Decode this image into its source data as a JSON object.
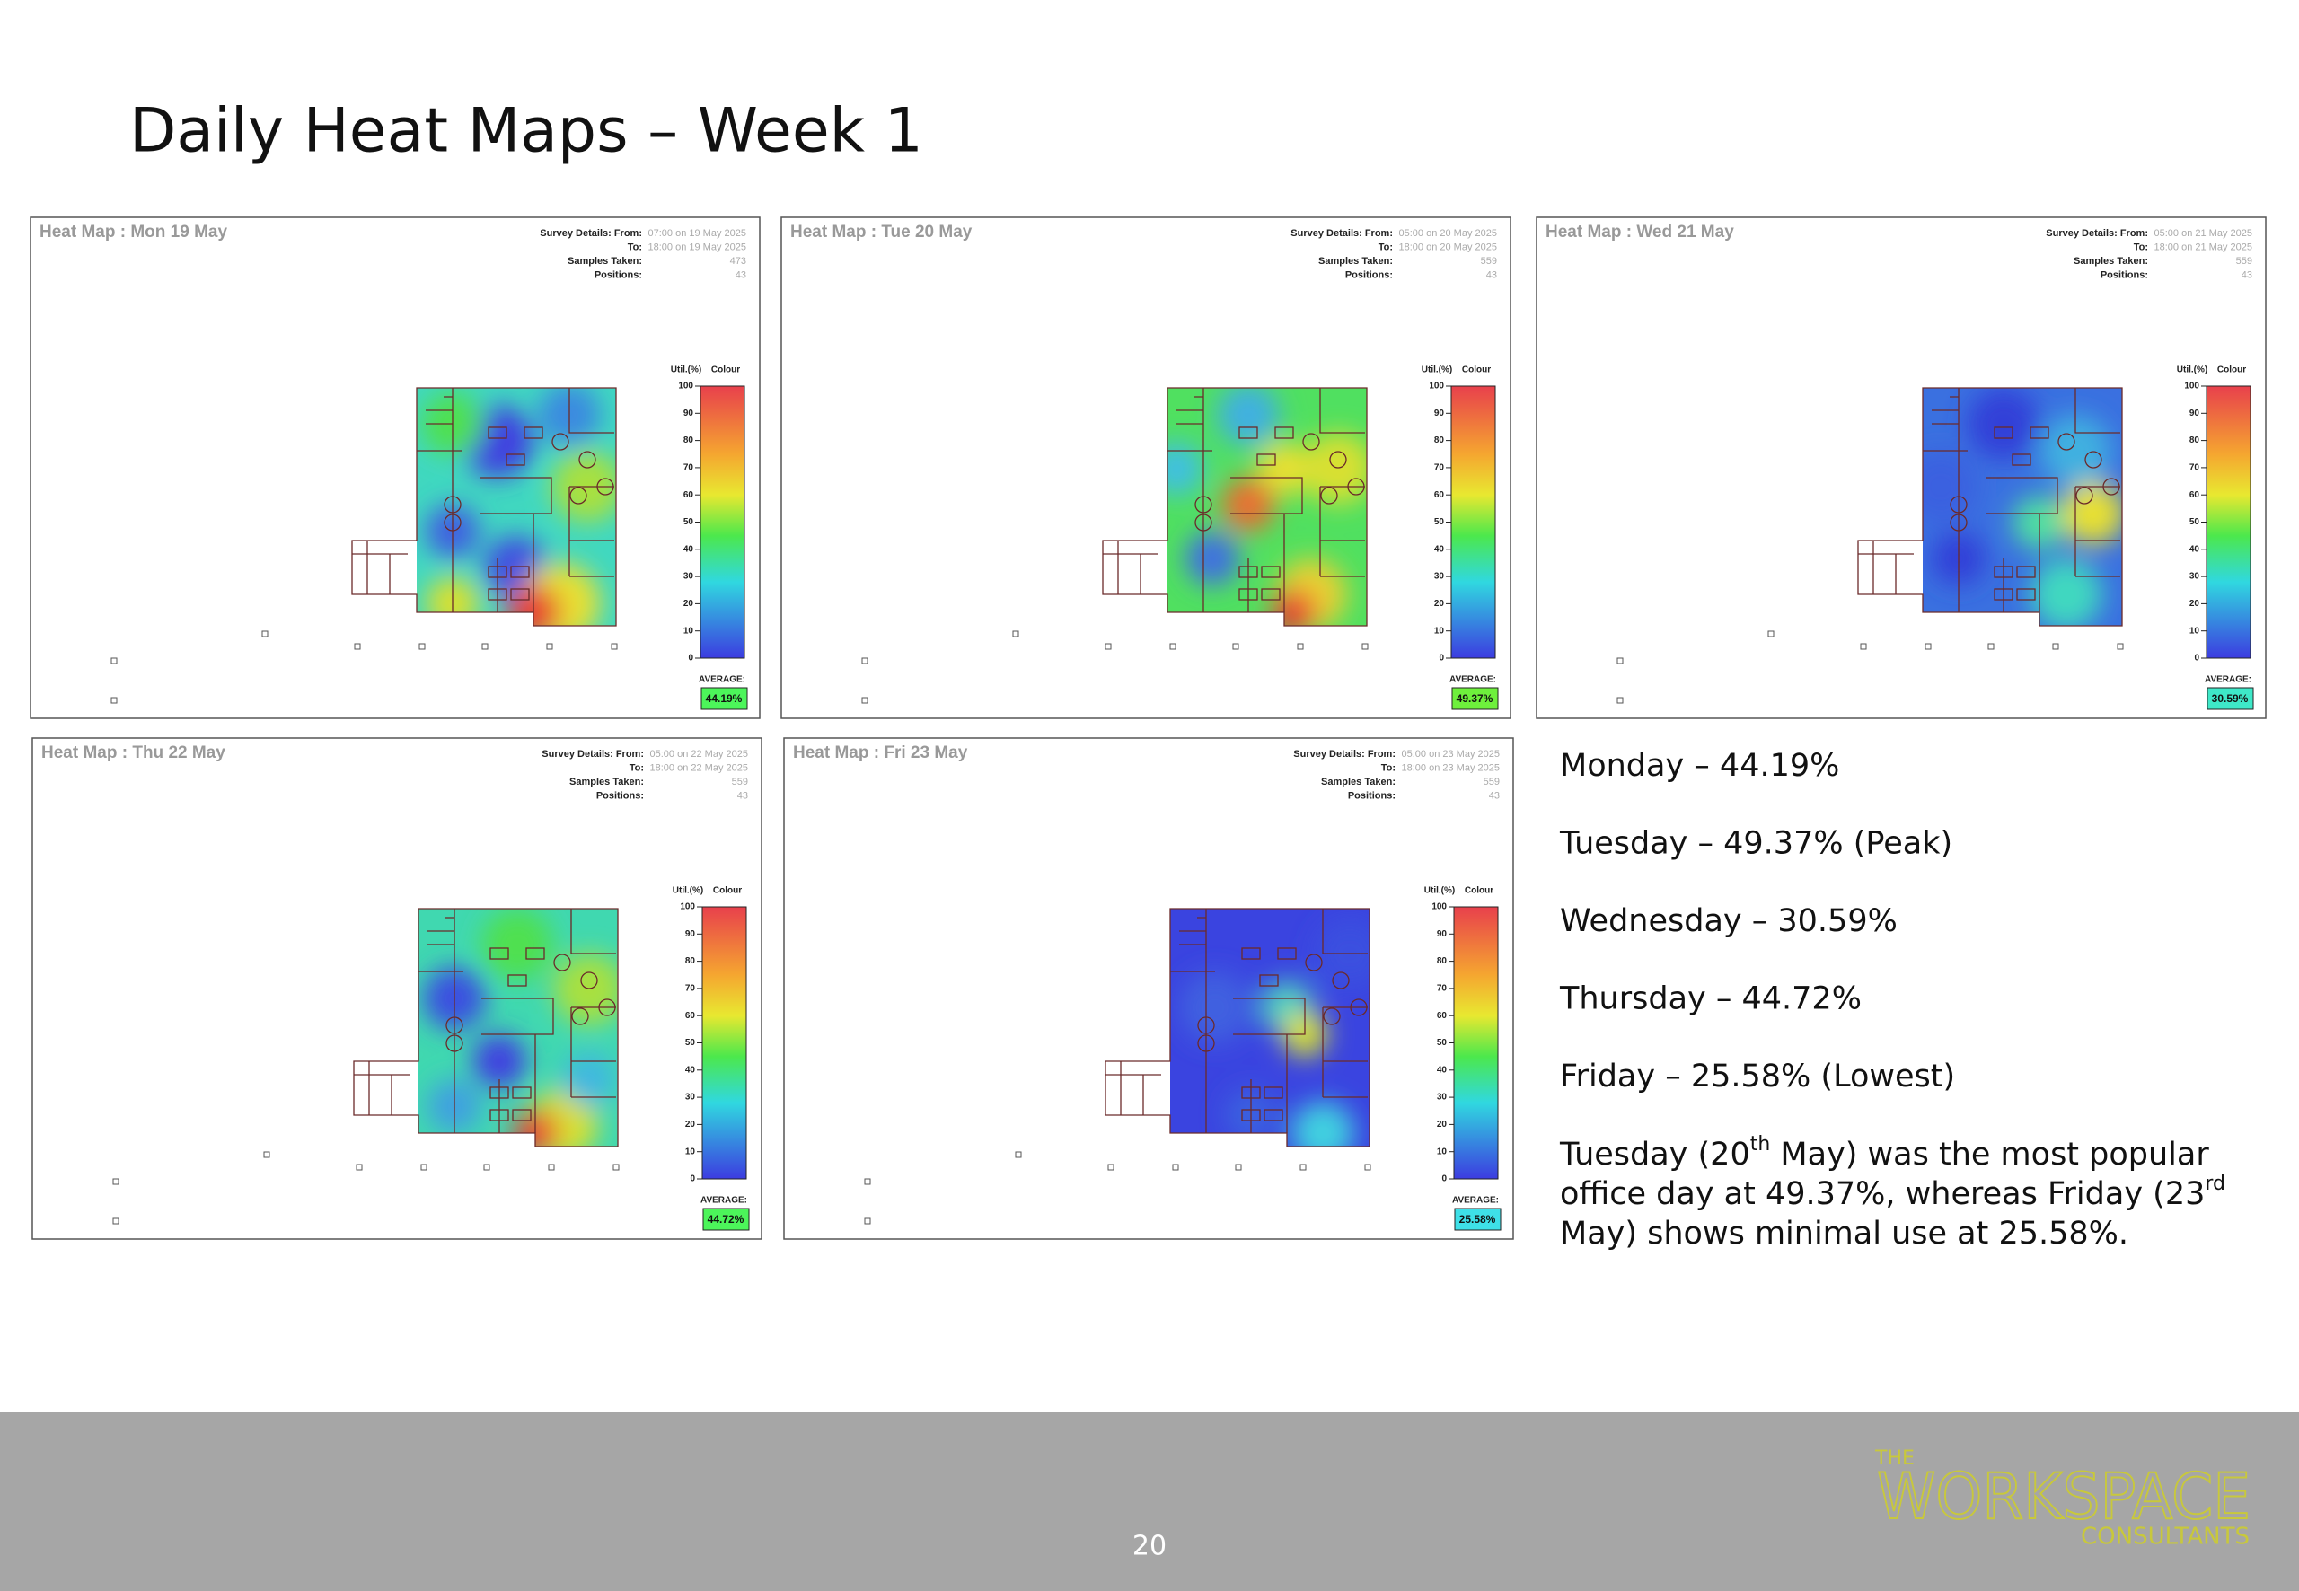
{
  "title": "Daily Heat Maps – Week 1",
  "legend": {
    "util": "Util.(%)",
    "colour": "Colour",
    "ticks": [
      0,
      10,
      20,
      30,
      40,
      50,
      60,
      70,
      80,
      90,
      100
    ],
    "average_label": "AVERAGE:"
  },
  "panels": [
    {
      "title": "Heat Map : Mon 19 May",
      "details": [
        {
          "label": "Survey Details: From:",
          "value": "07:00 on 19 May 2025"
        },
        {
          "label": "To:",
          "value": "18:00 on 19 May 2025"
        },
        {
          "label": "Samples Taken:",
          "value": "473"
        },
        {
          "label": "Positions:",
          "value": "43"
        }
      ],
      "average": "44.19%",
      "average_color": "#4cf55a"
    },
    {
      "title": "Heat Map : Tue 20 May",
      "details": [
        {
          "label": "Survey Details: From:",
          "value": "05:00 on 20 May 2025"
        },
        {
          "label": "To:",
          "value": "18:00 on 20 May 2025"
        },
        {
          "label": "Samples Taken:",
          "value": "559"
        },
        {
          "label": "Positions:",
          "value": "43"
        }
      ],
      "average": "49.37%",
      "average_color": "#6ef03c"
    },
    {
      "title": "Heat Map : Wed 21 May",
      "details": [
        {
          "label": "Survey Details: From:",
          "value": "05:00 on 21 May 2025"
        },
        {
          "label": "To:",
          "value": "18:00 on 21 May 2025"
        },
        {
          "label": "Samples Taken:",
          "value": "559"
        },
        {
          "label": "Positions:",
          "value": "43"
        }
      ],
      "average": "30.59%",
      "average_color": "#3ee8c8"
    },
    {
      "title": "Heat Map : Thu 22 May",
      "details": [
        {
          "label": "Survey Details: From:",
          "value": "05:00 on 22 May 2025"
        },
        {
          "label": "To:",
          "value": "18:00 on 22 May 2025"
        },
        {
          "label": "Samples Taken:",
          "value": "559"
        },
        {
          "label": "Positions:",
          "value": "43"
        }
      ],
      "average": "44.72%",
      "average_color": "#4cf55a"
    },
    {
      "title": "Heat Map : Fri 23 May",
      "details": [
        {
          "label": "Survey Details: From:",
          "value": "05:00 on 23 May 2025"
        },
        {
          "label": "To:",
          "value": "18:00 on 23 May 2025"
        },
        {
          "label": "Samples Taken:",
          "value": "559"
        },
        {
          "label": "Positions:",
          "value": "43"
        }
      ],
      "average": "25.58%",
      "average_color": "#3ee0e8"
    }
  ],
  "summary": {
    "lines": [
      "Monday – 44.19%",
      "Tuesday – 49.37% (Peak)",
      "Wednesday – 30.59%",
      "Thursday – 44.72%",
      "Friday – 25.58% (Lowest)"
    ],
    "paragraph_lines": [
      [
        "Tuesday (20",
        "th",
        " May) was the most popular"
      ],
      [
        "office day at 49.37%, whereas Friday (23",
        "rd"
      ],
      [
        "May) shows minimal use at 25.58%."
      ]
    ]
  },
  "footer": {
    "page": "20",
    "logo": [
      "THE",
      "WORKSPACE",
      "CONSULTANTS"
    ]
  }
}
